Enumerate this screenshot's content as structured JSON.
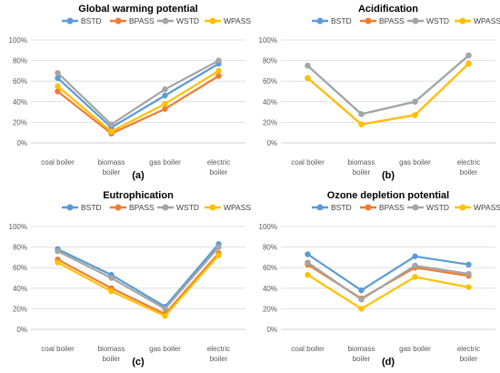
{
  "chart_data": [
    {
      "type": "line",
      "title": "Global warming potential",
      "panel_label": "(a)",
      "categories": [
        "coal boiler",
        "biomass boiler",
        "gas boiler",
        "electric boiler"
      ],
      "category_labels": [
        [
          "coal boiler"
        ],
        [
          "biomass",
          "boiler"
        ],
        [
          "gas boiler"
        ],
        [
          "electric",
          "boiler"
        ]
      ],
      "yticks": [
        "0%",
        "20%",
        "40%",
        "60%",
        "80%",
        "100%"
      ],
      "ylim": [
        0,
        1
      ],
      "grid": true,
      "legend_position": "top",
      "series": [
        {
          "name": "BSTD",
          "color": "#5B9BD5",
          "values": [
            0.63,
            0.15,
            0.46,
            0.77
          ]
        },
        {
          "name": "BPASS",
          "color": "#ED7D31",
          "values": [
            0.5,
            0.09,
            0.33,
            0.65
          ]
        },
        {
          "name": "WSTD",
          "color": "#A5A5A5",
          "values": [
            0.68,
            0.18,
            0.52,
            0.8
          ]
        },
        {
          "name": "WPASS",
          "color": "#FFC000",
          "values": [
            0.55,
            0.11,
            0.38,
            0.7
          ]
        }
      ]
    },
    {
      "type": "line",
      "title": "Acidification",
      "panel_label": "(b)",
      "categories": [
        "coal boiler",
        "biomass boiler",
        "gas boiler",
        "electric boiler"
      ],
      "category_labels": [
        [
          "coal boiler"
        ],
        [
          "biomass",
          "boiler"
        ],
        [
          "gas boiler"
        ],
        [
          "electric",
          "boiler"
        ]
      ],
      "yticks": [
        "0%",
        "20%",
        "40%",
        "60%",
        "80%",
        "100%"
      ],
      "ylim": [
        0,
        1
      ],
      "grid": true,
      "legend_position": "top",
      "series": [
        {
          "name": "BSTD",
          "color": "#5B9BD5",
          "values": [
            0.75,
            0.28,
            0.4,
            0.85
          ]
        },
        {
          "name": "BPASS",
          "color": "#ED7D31",
          "values": [
            0.63,
            0.18,
            0.27,
            0.77
          ]
        },
        {
          "name": "WSTD",
          "color": "#A5A5A5",
          "values": [
            0.75,
            0.28,
            0.4,
            0.85
          ]
        },
        {
          "name": "WPASS",
          "color": "#FFC000",
          "values": [
            0.63,
            0.18,
            0.27,
            0.77
          ]
        }
      ]
    },
    {
      "type": "line",
      "title": "Eutrophication",
      "panel_label": "(c)",
      "categories": [
        "coal boiler",
        "biomass boiler",
        "gas boiler",
        "electric boiler"
      ],
      "category_labels": [
        [
          "coal boiler"
        ],
        [
          "biomass",
          "boiler"
        ],
        [
          "gas boiler"
        ],
        [
          "electric",
          "boiler"
        ]
      ],
      "yticks": [
        "0%",
        "20%",
        "40%",
        "60%",
        "80%",
        "100%"
      ],
      "ylim": [
        0,
        1
      ],
      "grid": true,
      "legend_position": "top",
      "series": [
        {
          "name": "BSTD",
          "color": "#5B9BD5",
          "values": [
            0.78,
            0.53,
            0.22,
            0.83
          ]
        },
        {
          "name": "BPASS",
          "color": "#ED7D31",
          "values": [
            0.68,
            0.4,
            0.15,
            0.74
          ]
        },
        {
          "name": "WSTD",
          "color": "#A5A5A5",
          "values": [
            0.76,
            0.5,
            0.2,
            0.8
          ]
        },
        {
          "name": "WPASS",
          "color": "#FFC000",
          "values": [
            0.65,
            0.37,
            0.13,
            0.72
          ]
        }
      ]
    },
    {
      "type": "line",
      "title": "Ozone depletion potential",
      "panel_label": "(d)",
      "categories": [
        "coal boiler",
        "biomass boiler",
        "gas boiler",
        "electric boiler"
      ],
      "category_labels": [
        [
          "coal boiler"
        ],
        [
          "biomass",
          "boiler"
        ],
        [
          "gas boiler"
        ],
        [
          "electric",
          "boiler"
        ]
      ],
      "yticks": [
        "0%",
        "20%",
        "40%",
        "60%",
        "80%",
        "100%"
      ],
      "ylim": [
        0,
        1
      ],
      "grid": true,
      "legend_position": "top",
      "series": [
        {
          "name": "BSTD",
          "color": "#5B9BD5",
          "values": [
            0.73,
            0.38,
            0.71,
            0.63
          ]
        },
        {
          "name": "BPASS",
          "color": "#ED7D31",
          "values": [
            0.63,
            0.3,
            0.6,
            0.52
          ]
        },
        {
          "name": "WSTD",
          "color": "#A5A5A5",
          "values": [
            0.65,
            0.29,
            0.62,
            0.54
          ]
        },
        {
          "name": "WPASS",
          "color": "#FFC000",
          "values": [
            0.53,
            0.2,
            0.51,
            0.41
          ]
        }
      ]
    }
  ]
}
